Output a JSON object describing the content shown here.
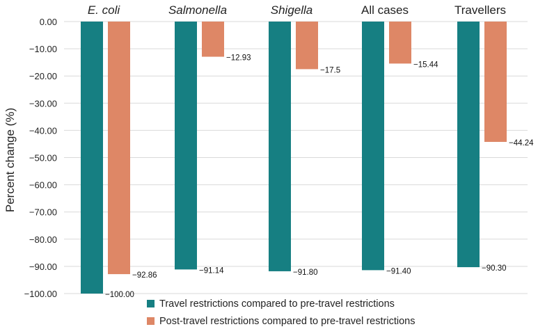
{
  "chart_data": {
    "type": "bar",
    "title": "",
    "xlabel": "",
    "ylabel": "Percent change (%)",
    "ylim": [
      -100,
      0
    ],
    "ytick_step": 10,
    "grid": true,
    "legend_position": "bottom",
    "categories": [
      "E. coli",
      "Salmonella",
      "Shigella",
      "All cases",
      "Travellers"
    ],
    "category_italic": [
      true,
      true,
      true,
      false,
      false
    ],
    "series": [
      {
        "name": "Travel restrictions compared to pre-travel restrictions",
        "color": "#167f82",
        "values": [
          -100.0,
          -91.14,
          -91.8,
          -91.4,
          -90.3
        ],
        "labels": [
          "−100.00",
          "−91.14",
          "−91.80",
          "−91.40",
          "−90.30"
        ]
      },
      {
        "name": "Post-travel restrictions compared to pre-travel restrictions",
        "color": "#de8766",
        "values": [
          -92.86,
          -12.93,
          -17.5,
          -15.44,
          -44.24
        ],
        "labels": [
          "−92.86",
          "−12.93",
          "−17.5",
          "−15.44",
          "−44.24"
        ]
      }
    ],
    "yticks": [
      "0.00",
      "−10.00",
      "−20.00",
      "−30.00",
      "−40.00",
      "−50.00",
      "−60.00",
      "−70.00",
      "−80.00",
      "−90.00",
      "−100.00"
    ]
  }
}
